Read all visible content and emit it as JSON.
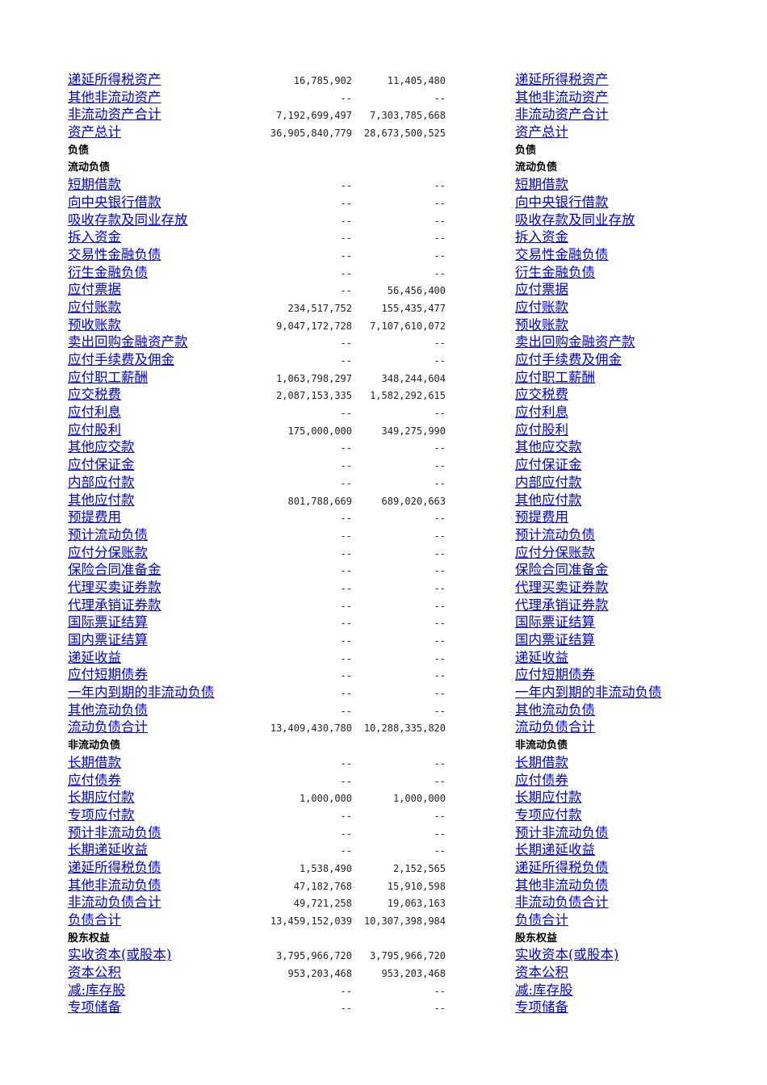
{
  "rows": [
    {
      "type": "item",
      "label": "递延所得税资产",
      "v1": "16,785,902",
      "v2": "11,405,480"
    },
    {
      "type": "item",
      "label": "其他非流动资产",
      "v1": "--",
      "v2": "--"
    },
    {
      "type": "item",
      "label": "非流动资产合计",
      "v1": "7,192,699,497",
      "v2": "7,303,785,668"
    },
    {
      "type": "item",
      "label": "资产总计",
      "v1": "36,905,840,779",
      "v2": "28,673,500,525"
    },
    {
      "type": "header",
      "label": "负债"
    },
    {
      "type": "header",
      "label": "流动负债"
    },
    {
      "type": "item",
      "label": "短期借款",
      "v1": "--",
      "v2": "--"
    },
    {
      "type": "item",
      "label": "向中央银行借款",
      "v1": "--",
      "v2": "--"
    },
    {
      "type": "item",
      "label": "吸收存款及同业存放",
      "v1": "--",
      "v2": "--"
    },
    {
      "type": "item",
      "label": "拆入资金",
      "v1": "--",
      "v2": "--"
    },
    {
      "type": "item",
      "label": "交易性金融负债",
      "v1": "--",
      "v2": "--"
    },
    {
      "type": "item",
      "label": "衍生金融负债",
      "v1": "--",
      "v2": "--"
    },
    {
      "type": "item",
      "label": "应付票据",
      "v1": "--",
      "v2": "56,456,400"
    },
    {
      "type": "item",
      "label": "应付账款",
      "v1": "234,517,752",
      "v2": "155,435,477"
    },
    {
      "type": "item",
      "label": "预收账款",
      "v1": "9,047,172,728",
      "v2": "7,107,610,072"
    },
    {
      "type": "item",
      "label": "卖出回购金融资产款",
      "v1": "--",
      "v2": "--"
    },
    {
      "type": "item",
      "label": "应付手续费及佣金",
      "v1": "--",
      "v2": "--"
    },
    {
      "type": "item",
      "label": "应付职工薪酬",
      "v1": "1,063,798,297",
      "v2": "348,244,604"
    },
    {
      "type": "item",
      "label": "应交税费",
      "v1": "2,087,153,335",
      "v2": "1,582,292,615"
    },
    {
      "type": "item",
      "label": "应付利息",
      "v1": "--",
      "v2": "--"
    },
    {
      "type": "item",
      "label": "应付股利",
      "v1": "175,000,000",
      "v2": "349,275,990"
    },
    {
      "type": "item",
      "label": "其他应交款",
      "v1": "--",
      "v2": "--"
    },
    {
      "type": "item",
      "label": "应付保证金",
      "v1": "--",
      "v2": "--"
    },
    {
      "type": "item",
      "label": "内部应付款",
      "v1": "--",
      "v2": "--"
    },
    {
      "type": "item",
      "label": "其他应付款",
      "v1": "801,788,669",
      "v2": "689,020,663"
    },
    {
      "type": "item",
      "label": "预提费用",
      "v1": "--",
      "v2": "--"
    },
    {
      "type": "item",
      "label": "预计流动负债",
      "v1": "--",
      "v2": "--"
    },
    {
      "type": "item",
      "label": "应付分保账款",
      "v1": "--",
      "v2": "--"
    },
    {
      "type": "item",
      "label": "保险合同准备金",
      "v1": "--",
      "v2": "--"
    },
    {
      "type": "item",
      "label": "代理买卖证券款",
      "v1": "--",
      "v2": "--"
    },
    {
      "type": "item",
      "label": "代理承销证券款",
      "v1": "--",
      "v2": "--"
    },
    {
      "type": "item",
      "label": "国际票证结算",
      "v1": "--",
      "v2": "--"
    },
    {
      "type": "item",
      "label": "国内票证结算",
      "v1": "--",
      "v2": "--"
    },
    {
      "type": "item",
      "label": "递延收益",
      "v1": "--",
      "v2": "--"
    },
    {
      "type": "item",
      "label": "应付短期债券",
      "v1": "--",
      "v2": "--"
    },
    {
      "type": "item",
      "label": "一年内到期的非流动负债",
      "v1": "--",
      "v2": "--"
    },
    {
      "type": "item",
      "label": "其他流动负债",
      "v1": "--",
      "v2": "--"
    },
    {
      "type": "item",
      "label": "流动负债合计",
      "v1": "13,409,430,780",
      "v2": "10,288,335,820"
    },
    {
      "type": "header",
      "label": "非流动负债"
    },
    {
      "type": "item",
      "label": "长期借款",
      "v1": "--",
      "v2": "--"
    },
    {
      "type": "item",
      "label": "应付债券",
      "v1": "--",
      "v2": "--"
    },
    {
      "type": "item",
      "label": "长期应付款",
      "v1": "1,000,000",
      "v2": "1,000,000"
    },
    {
      "type": "item",
      "label": "专项应付款",
      "v1": "--",
      "v2": "--"
    },
    {
      "type": "item",
      "label": "预计非流动负债",
      "v1": "--",
      "v2": "--"
    },
    {
      "type": "item",
      "label": "长期递延收益",
      "v1": "--",
      "v2": "--"
    },
    {
      "type": "item",
      "label": "递延所得税负债",
      "v1": "1,538,490",
      "v2": "2,152,565"
    },
    {
      "type": "item",
      "label": "其他非流动负债",
      "v1": "47,182,768",
      "v2": "15,910,598"
    },
    {
      "type": "item",
      "label": "非流动负债合计",
      "v1": "49,721,258",
      "v2": "19,063,163"
    },
    {
      "type": "item",
      "label": "负债合计",
      "v1": "13,459,152,039",
      "v2": "10,307,398,984"
    },
    {
      "type": "header",
      "label": "股东权益"
    },
    {
      "type": "item",
      "label": "实收资本(或股本)",
      "v1": "3,795,966,720",
      "v2": "3,795,966,720"
    },
    {
      "type": "item",
      "label": "资本公积",
      "v1": "953,203,468",
      "v2": "953,203,468"
    },
    {
      "type": "item",
      "label": "减:库存股",
      "v1": "--",
      "v2": "--"
    },
    {
      "type": "item",
      "label": "专项储备",
      "v1": "--",
      "v2": "--"
    }
  ]
}
